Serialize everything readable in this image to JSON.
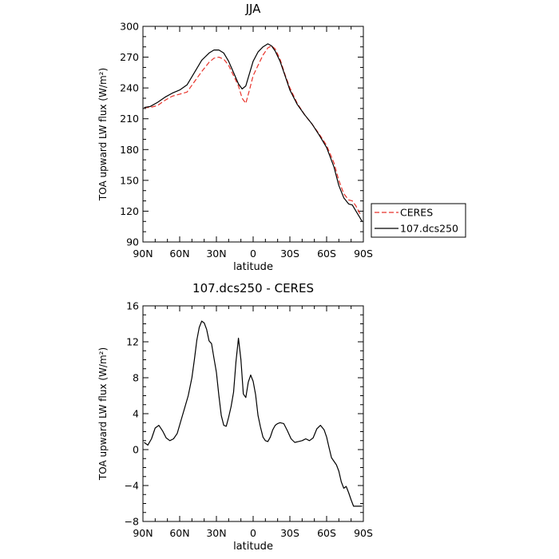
{
  "chart_data": [
    {
      "type": "line",
      "title": "JJA",
      "xlabel": "latitude",
      "ylabel": "TOA upward LW flux (W/m²)",
      "xlim": [
        90,
        -90
      ],
      "ylim": [
        90,
        300
      ],
      "x_ticks": [
        90,
        60,
        30,
        0,
        -30,
        -60,
        -90
      ],
      "x_tick_labels": [
        "90N",
        "60N",
        "30N",
        "0",
        "30S",
        "60S",
        "90S"
      ],
      "y_ticks": [
        90,
        120,
        150,
        180,
        210,
        240,
        270,
        300
      ],
      "y_tick_labels": [
        "90",
        "120",
        "150",
        "180",
        "210",
        "240",
        "270",
        "300"
      ],
      "legend": "right",
      "legend_entries": [
        "CERES",
        "107.dcs250"
      ],
      "series": [
        {
          "name": "CERES",
          "color": "#e8322a",
          "dash": "dashed",
          "x": [
            89,
            84,
            78,
            72,
            66,
            60,
            54,
            48,
            42,
            36,
            32,
            28,
            24,
            20,
            16,
            12,
            9,
            6,
            3,
            0,
            -4,
            -8,
            -12,
            -15,
            -18,
            -22,
            -26,
            -30,
            -36,
            -42,
            -48,
            -54,
            -60,
            -66,
            -70,
            -74,
            -78,
            -81,
            -84,
            -87,
            -89
          ],
          "y": [
            221,
            221,
            223,
            228,
            232,
            234,
            236,
            246,
            256,
            265,
            269,
            270,
            268,
            262,
            252,
            242,
            230,
            225,
            238,
            252,
            262,
            272,
            279,
            281,
            278,
            268,
            253,
            240,
            225,
            214,
            205,
            195,
            184,
            167,
            150,
            137,
            131,
            130,
            125,
            118,
            117
          ]
        },
        {
          "name": "107.dcs250",
          "color": "#000000",
          "dash": "solid",
          "x": [
            89,
            84,
            78,
            72,
            66,
            60,
            54,
            48,
            42,
            36,
            32,
            28,
            24,
            20,
            16,
            12,
            9,
            6,
            3,
            0,
            -4,
            -8,
            -12,
            -15,
            -18,
            -22,
            -26,
            -30,
            -36,
            -42,
            -48,
            -54,
            -60,
            -66,
            -70,
            -74,
            -78,
            -81,
            -84,
            -87,
            -89
          ],
          "y": [
            221,
            222,
            226,
            231,
            235,
            238,
            243,
            255,
            267,
            274,
            277,
            277,
            274,
            266,
            255,
            244,
            239,
            242,
            254,
            266,
            275,
            280,
            283,
            281,
            276,
            266,
            252,
            238,
            224,
            214,
            205,
            194,
            182,
            163,
            145,
            133,
            127,
            126,
            120,
            114,
            110
          ]
        }
      ]
    },
    {
      "type": "line",
      "title": "107.dcs250 - CERES",
      "xlabel": "latitude",
      "ylabel": "TOA upward LW flux (W/m²)",
      "xlim": [
        90,
        -90
      ],
      "ylim": [
        -8,
        16
      ],
      "x_ticks": [
        90,
        60,
        30,
        0,
        -30,
        -60,
        -90
      ],
      "x_tick_labels": [
        "90N",
        "60N",
        "30N",
        "0",
        "30S",
        "60S",
        "90S"
      ],
      "y_ticks": [
        -8,
        -4,
        0,
        4,
        8,
        12,
        16
      ],
      "y_tick_labels": [
        "−8",
        "−4",
        "0",
        "4",
        "8",
        "12",
        "16"
      ],
      "series": [
        {
          "color": "#000000",
          "dash": "solid",
          "x": [
            89,
            86,
            83,
            80,
            77,
            74,
            71,
            68,
            65,
            62,
            59,
            56,
            53,
            50,
            48,
            46,
            44,
            42,
            40,
            38,
            36,
            34,
            32,
            30,
            28,
            26,
            24,
            22,
            20,
            18,
            16,
            14,
            12,
            10,
            8,
            6,
            4,
            2,
            0,
            -2,
            -4,
            -6,
            -8,
            -10,
            -12,
            -14,
            -16,
            -18,
            -20,
            -22,
            -25,
            -28,
            -31,
            -34,
            -37,
            -40,
            -43,
            -46,
            -49,
            -52,
            -55,
            -58,
            -60,
            -62,
            -64,
            -66,
            -68,
            -70,
            -72,
            -74,
            -76,
            -78,
            -80,
            -82,
            -84,
            -86,
            -89
          ],
          "y": [
            0.8,
            0.5,
            1.2,
            2.4,
            2.7,
            2.1,
            1.3,
            1.0,
            1.2,
            1.8,
            3.2,
            4.6,
            6.0,
            8.0,
            10.0,
            12.2,
            13.6,
            14.3,
            14.1,
            13.4,
            12.1,
            11.8,
            10.2,
            8.6,
            6.0,
            3.8,
            2.7,
            2.6,
            3.6,
            4.8,
            6.4,
            9.8,
            12.4,
            10.0,
            6.2,
            5.8,
            7.5,
            8.3,
            7.6,
            6.1,
            3.8,
            2.5,
            1.4,
            1.0,
            0.9,
            1.4,
            2.2,
            2.7,
            2.9,
            3.0,
            2.9,
            2.1,
            1.2,
            0.8,
            0.9,
            1.0,
            1.2,
            1.0,
            1.3,
            2.3,
            2.7,
            2.2,
            1.4,
            0.2,
            -0.9,
            -1.3,
            -1.7,
            -2.4,
            -3.6,
            -4.3,
            -4.1,
            -4.8,
            -5.6,
            -6.3,
            -6.3,
            -6.3,
            -6.3
          ]
        }
      ]
    }
  ]
}
